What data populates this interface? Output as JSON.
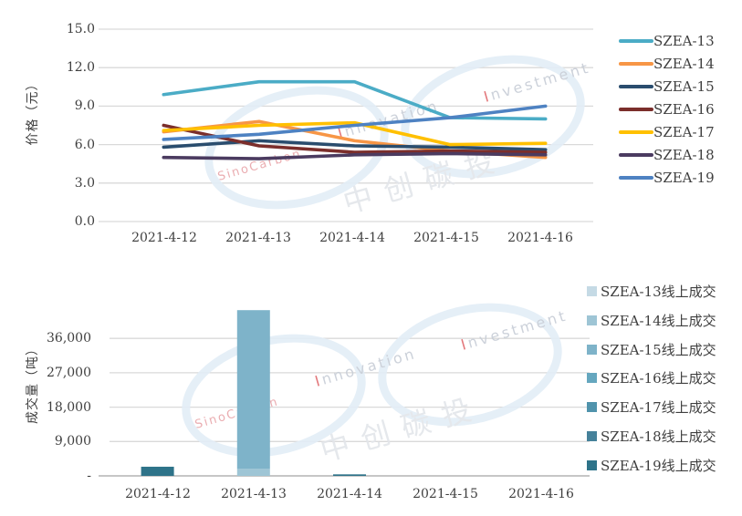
{
  "watermark": {
    "brand": "SinoCarbon",
    "word1": "Innovation",
    "word2": "Investment",
    "cjk": "中创碳投",
    "ellipse_color": "#E3EEF7",
    "text_color": "#C7CDD6",
    "accent_color": "#E06A6E",
    "brand_color": "#E8A4A8",
    "cjk_color": "#E3E6EA"
  },
  "colors": {
    "grid": "#D9D9D9",
    "axis": "#C6C6C6",
    "text": "#3F3F3F"
  },
  "chart_data": [
    {
      "type": "line",
      "title": "",
      "xlabel": "",
      "ylabel": "价格（元）",
      "x": [
        "2021-4-12",
        "2021-4-13",
        "2021-4-14",
        "2021-4-15",
        "2021-4-16"
      ],
      "ylim": [
        0,
        15
      ],
      "yticks": [
        0,
        3,
        6,
        9,
        12,
        15
      ],
      "ytick_labels": [
        "0.0",
        "3.0",
        "6.0",
        "9.0",
        "12.0",
        "15.0"
      ],
      "grid": true,
      "legend_position": "right",
      "series": [
        {
          "name": "SZEA-13",
          "color": "#4BACC6",
          "values": [
            9.9,
            10.9,
            10.9,
            8.1,
            8.0
          ]
        },
        {
          "name": "SZEA-14",
          "color": "#F79646",
          "values": [
            7.0,
            7.8,
            6.3,
            5.5,
            5.0
          ]
        },
        {
          "name": "SZEA-15",
          "color": "#2A4D6E",
          "values": [
            5.8,
            6.3,
            5.9,
            5.8,
            5.6
          ]
        },
        {
          "name": "SZEA-16",
          "color": "#7B2E2B",
          "values": [
            7.5,
            5.9,
            5.4,
            5.5,
            5.4
          ]
        },
        {
          "name": "SZEA-17",
          "color": "#FFC000",
          "values": [
            7.1,
            7.5,
            7.7,
            6.0,
            6.1
          ]
        },
        {
          "name": "SZEA-18",
          "color": "#4B3B60",
          "values": [
            5.0,
            4.9,
            5.2,
            5.3,
            5.2
          ]
        },
        {
          "name": "SZEA-19",
          "color": "#4E82C2",
          "values": [
            6.4,
            6.8,
            7.5,
            8.1,
            9.0
          ]
        }
      ]
    },
    {
      "type": "bar",
      "stacked": true,
      "title": "",
      "xlabel": "",
      "ylabel": "成交量（吨）",
      "x": [
        "2021-4-12",
        "2021-4-13",
        "2021-4-14",
        "2021-4-15",
        "2021-4-16"
      ],
      "ylim": [
        0,
        45000
      ],
      "yticks": [
        0,
        9000,
        18000,
        27000,
        36000
      ],
      "ytick_labels": [
        "-",
        "9,000",
        "18,000",
        "27,000",
        "36,000"
      ],
      "grid": true,
      "legend_position": "right",
      "series": [
        {
          "name": "SZEA-13线上成交",
          "color": "#C5DAE5",
          "values": [
            0,
            0,
            0,
            0,
            0
          ]
        },
        {
          "name": "SZEA-14线上成交",
          "color": "#9EC5D5",
          "values": [
            0,
            1900,
            0,
            0,
            0
          ]
        },
        {
          "name": "SZEA-15线上成交",
          "color": "#7EB3C9",
          "values": [
            0,
            41500,
            0,
            0,
            0
          ]
        },
        {
          "name": "SZEA-16线上成交",
          "color": "#65A7BF",
          "values": [
            0,
            0,
            0,
            0,
            0
          ]
        },
        {
          "name": "SZEA-17线上成交",
          "color": "#5093AC",
          "values": [
            0,
            0,
            0,
            0,
            0
          ]
        },
        {
          "name": "SZEA-18线上成交",
          "color": "#45819A",
          "values": [
            0,
            0,
            0,
            0,
            0
          ]
        },
        {
          "name": "SZEA-19线上成交",
          "color": "#2E7389",
          "values": [
            2400,
            0,
            400,
            0,
            0
          ]
        }
      ]
    }
  ]
}
